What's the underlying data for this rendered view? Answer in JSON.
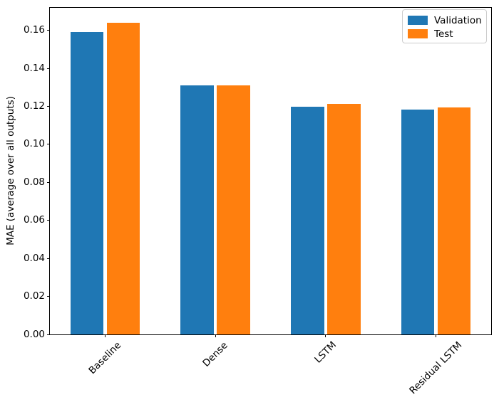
{
  "chart_data": {
    "type": "bar",
    "title": "",
    "xlabel": "",
    "ylabel": "MAE (average over all outputs)",
    "categories": [
      "Baseline",
      "Dense",
      "LSTM",
      "Residual LSTM"
    ],
    "series": [
      {
        "name": "Validation",
        "color": "#1f77b4",
        "values": [
          0.159,
          0.131,
          0.12,
          0.1185
        ]
      },
      {
        "name": "Test",
        "color": "#ff7f0e",
        "values": [
          0.164,
          0.131,
          0.1215,
          0.1195
        ]
      }
    ],
    "ylim": [
      0,
      0.1719
    ],
    "yticks": [
      0.0,
      0.02,
      0.04,
      0.06,
      0.08,
      0.1,
      0.12,
      0.14,
      0.16
    ],
    "x_tick_rotation_deg": 45,
    "grid": false,
    "legend_position": "upper right",
    "legend_items": [
      {
        "label": "Validation",
        "color": "#1f77b4"
      },
      {
        "label": "Test",
        "color": "#ff7f0e"
      }
    ]
  }
}
